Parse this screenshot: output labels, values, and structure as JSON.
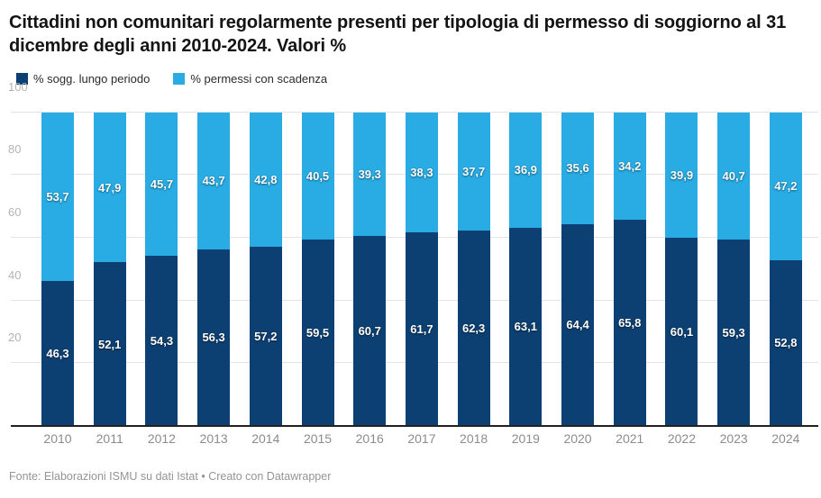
{
  "header": {
    "title": "Cittadini non comunitari regolarmente presenti per tipologia di permesso di soggiorno al 31 dicembre degli anni 2010-2024. Valori %"
  },
  "legend": {
    "items": [
      {
        "label": "% sogg. lungo periodo",
        "color": "#0d4072",
        "slug": "lungo-periodo"
      },
      {
        "label": "% permessi con scadenza",
        "color": "#29ace4",
        "slug": "con-scadenza"
      }
    ]
  },
  "chart_data": {
    "type": "bar",
    "stacked": true,
    "title": "Cittadini non comunitari regolarmente presenti per tipologia di permesso di soggiorno al 31 dicembre degli anni 2010-2024. Valori %",
    "categories": [
      "2010",
      "2011",
      "2012",
      "2013",
      "2014",
      "2015",
      "2016",
      "2017",
      "2018",
      "2019",
      "2020",
      "2021",
      "2022",
      "2023",
      "2024"
    ],
    "series": [
      {
        "name": "% sogg. lungo periodo",
        "slug": "lungo-periodo",
        "color": "#0d4072",
        "values": [
          46.3,
          52.1,
          54.3,
          56.3,
          57.2,
          59.5,
          60.7,
          61.7,
          62.3,
          63.1,
          64.4,
          65.8,
          60.1,
          59.3,
          52.8
        ],
        "labels": [
          "46,3",
          "52,1",
          "54,3",
          "56,3",
          "57,2",
          "59,5",
          "60,7",
          "61,7",
          "62,3",
          "63,1",
          "64,4",
          "65,8",
          "60,1",
          "59,3",
          "52,8"
        ]
      },
      {
        "name": "% permessi con scadenza",
        "slug": "con-scadenza",
        "color": "#29ace4",
        "values": [
          53.7,
          47.9,
          45.7,
          43.7,
          42.8,
          40.5,
          39.3,
          38.3,
          37.7,
          36.9,
          35.6,
          34.2,
          39.9,
          40.7,
          47.2
        ],
        "labels": [
          "53,7",
          "47,9",
          "45,7",
          "43,7",
          "42,8",
          "40,5",
          "39,3",
          "38,3",
          "37,7",
          "36,9",
          "35,6",
          "34,2",
          "39,9",
          "40,7",
          "47,2"
        ]
      }
    ],
    "xlabel": "",
    "ylabel": "",
    "ylim": [
      0,
      100
    ],
    "yticks": [
      20,
      40,
      60,
      80,
      100
    ],
    "grid": true,
    "legend_position": "top",
    "value_labels": "inside-center"
  },
  "footer": {
    "source": "Fonte: Elaborazioni ISMU su dati Istat",
    "separator": "•",
    "attribution": "Creato con Datawrapper"
  }
}
